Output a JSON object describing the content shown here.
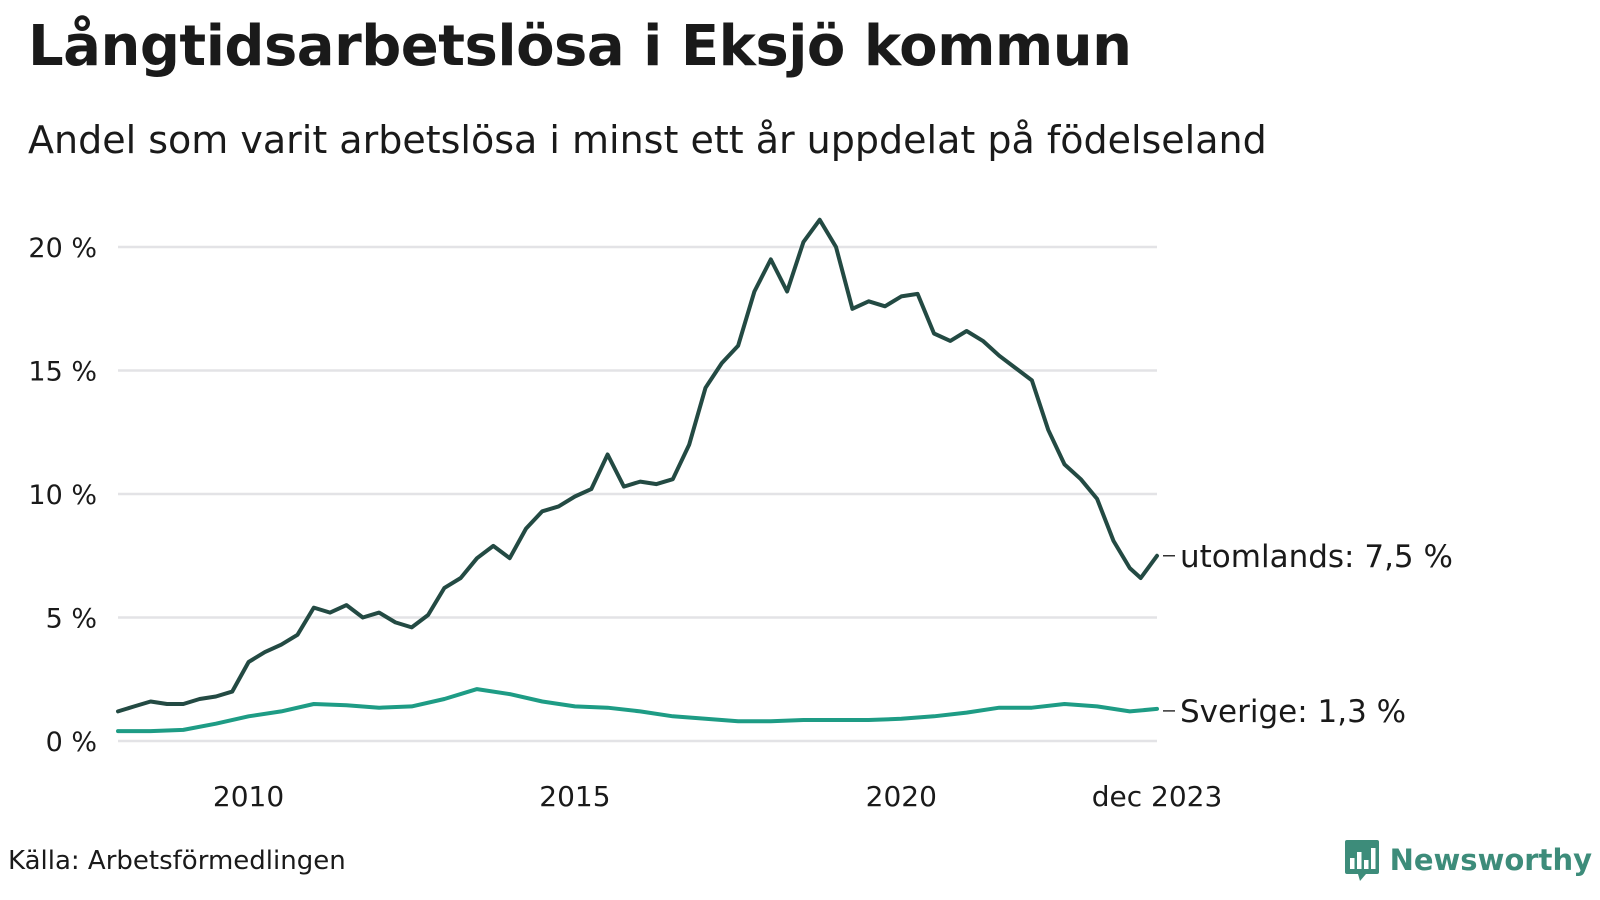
{
  "title": "Långtidsarbetslösa i Eksjö kommun",
  "subtitle": "Andel som varit arbetslösa i minst ett år uppdelat på födelseland",
  "source": "Källa: Arbetsförmedlingen",
  "brand": {
    "name": "Newsworthy",
    "logo_icon": "bar-chart-speech-bubble-icon"
  },
  "colors": {
    "utomlands": "#234a43",
    "sverige": "#1e9c85",
    "grid": "#e3e3e6",
    "brand": "#3d8c7a"
  },
  "labels": {
    "utomlands": "utomlands: 7,5 %",
    "sverige": "Sverige: 1,3 %"
  },
  "chart_data": {
    "type": "line",
    "title": "Långtidsarbetslösa i Eksjö kommun",
    "subtitle": "Andel som varit arbetslösa i minst ett år uppdelat på födelseland",
    "xlabel": "",
    "ylabel": "",
    "x_range": [
      2008.0,
      2023.917
    ],
    "ylim": [
      0,
      20
    ],
    "y_ticks": [
      0,
      5,
      10,
      15,
      20
    ],
    "y_tick_labels": [
      "0 %",
      "5 %",
      "10 %",
      "15 %",
      "20 %"
    ],
    "x_ticks": [
      2010,
      2015,
      2020,
      2023.917
    ],
    "x_tick_labels": [
      "2010",
      "2015",
      "2020",
      "dec 2023"
    ],
    "grid": true,
    "legend": "direct labels at line ends (right)",
    "series": [
      {
        "name": "utomlands",
        "end_label": "utomlands: 7,5 %",
        "points": [
          [
            2008.0,
            1.2
          ],
          [
            2008.25,
            1.4
          ],
          [
            2008.5,
            1.6
          ],
          [
            2008.75,
            1.5
          ],
          [
            2009.0,
            1.5
          ],
          [
            2009.25,
            1.7
          ],
          [
            2009.5,
            1.8
          ],
          [
            2009.75,
            2.0
          ],
          [
            2010.0,
            3.2
          ],
          [
            2010.25,
            3.6
          ],
          [
            2010.5,
            3.9
          ],
          [
            2010.75,
            4.3
          ],
          [
            2011.0,
            5.4
          ],
          [
            2011.25,
            5.2
          ],
          [
            2011.5,
            5.5
          ],
          [
            2011.75,
            5.0
          ],
          [
            2012.0,
            5.2
          ],
          [
            2012.25,
            4.8
          ],
          [
            2012.5,
            4.6
          ],
          [
            2012.75,
            5.1
          ],
          [
            2013.0,
            6.2
          ],
          [
            2013.25,
            6.6
          ],
          [
            2013.5,
            7.4
          ],
          [
            2013.75,
            7.9
          ],
          [
            2014.0,
            7.4
          ],
          [
            2014.25,
            8.6
          ],
          [
            2014.5,
            9.3
          ],
          [
            2014.75,
            9.5
          ],
          [
            2015.0,
            9.9
          ],
          [
            2015.25,
            10.2
          ],
          [
            2015.5,
            11.6
          ],
          [
            2015.75,
            10.3
          ],
          [
            2016.0,
            10.5
          ],
          [
            2016.25,
            10.4
          ],
          [
            2016.5,
            10.6
          ],
          [
            2016.75,
            12.0
          ],
          [
            2017.0,
            14.3
          ],
          [
            2017.25,
            15.3
          ],
          [
            2017.5,
            16.0
          ],
          [
            2017.75,
            18.2
          ],
          [
            2018.0,
            19.5
          ],
          [
            2018.25,
            18.2
          ],
          [
            2018.5,
            20.2
          ],
          [
            2018.75,
            21.1
          ],
          [
            2019.0,
            20.0
          ],
          [
            2019.25,
            17.5
          ],
          [
            2019.5,
            17.8
          ],
          [
            2019.75,
            17.6
          ],
          [
            2020.0,
            18.0
          ],
          [
            2020.25,
            18.1
          ],
          [
            2020.5,
            16.5
          ],
          [
            2020.75,
            16.2
          ],
          [
            2021.0,
            16.6
          ],
          [
            2021.25,
            16.2
          ],
          [
            2021.5,
            15.6
          ],
          [
            2021.75,
            15.1
          ],
          [
            2022.0,
            14.6
          ],
          [
            2022.25,
            12.6
          ],
          [
            2022.5,
            11.2
          ],
          [
            2022.75,
            10.6
          ],
          [
            2023.0,
            9.8
          ],
          [
            2023.25,
            8.1
          ],
          [
            2023.5,
            7.0
          ],
          [
            2023.667,
            6.6
          ],
          [
            2023.917,
            7.5
          ]
        ]
      },
      {
        "name": "Sverige",
        "end_label": "Sverige: 1,3 %",
        "points": [
          [
            2008.0,
            0.4
          ],
          [
            2008.5,
            0.4
          ],
          [
            2009.0,
            0.45
          ],
          [
            2009.5,
            0.7
          ],
          [
            2010.0,
            1.0
          ],
          [
            2010.5,
            1.2
          ],
          [
            2011.0,
            1.5
          ],
          [
            2011.5,
            1.45
          ],
          [
            2012.0,
            1.35
          ],
          [
            2012.5,
            1.4
          ],
          [
            2013.0,
            1.7
          ],
          [
            2013.5,
            2.1
          ],
          [
            2014.0,
            1.9
          ],
          [
            2014.5,
            1.6
          ],
          [
            2015.0,
            1.4
          ],
          [
            2015.5,
            1.35
          ],
          [
            2016.0,
            1.2
          ],
          [
            2016.5,
            1.0
          ],
          [
            2017.0,
            0.9
          ],
          [
            2017.5,
            0.8
          ],
          [
            2018.0,
            0.8
          ],
          [
            2018.5,
            0.85
          ],
          [
            2019.0,
            0.85
          ],
          [
            2019.5,
            0.85
          ],
          [
            2020.0,
            0.9
          ],
          [
            2020.5,
            1.0
          ],
          [
            2021.0,
            1.15
          ],
          [
            2021.5,
            1.35
          ],
          [
            2022.0,
            1.35
          ],
          [
            2022.5,
            1.5
          ],
          [
            2023.0,
            1.4
          ],
          [
            2023.5,
            1.2
          ],
          [
            2023.917,
            1.3
          ]
        ]
      }
    ]
  }
}
